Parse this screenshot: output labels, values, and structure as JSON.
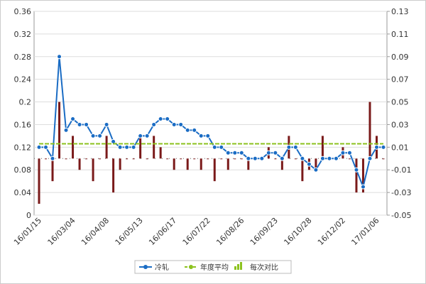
{
  "chart_data": {
    "type": "line",
    "categories": [
      "16/01/15",
      null,
      null,
      null,
      null,
      "16/03/04",
      null,
      null,
      null,
      null,
      "16/04/08",
      null,
      null,
      null,
      null,
      "16/05/13",
      null,
      null,
      null,
      null,
      "16/06/17",
      null,
      null,
      null,
      null,
      "16/07/22",
      null,
      null,
      null,
      null,
      "16/08/26",
      null,
      null,
      null,
      null,
      "16/09/23",
      null,
      null,
      null,
      null,
      "16/10/28",
      null,
      null,
      null,
      null,
      "16/12/02",
      null,
      null,
      null,
      null,
      "17/01/06",
      null
    ],
    "series": [
      {
        "name": "冷轧",
        "color": "#1a6cc4",
        "values": [
          0.12,
          0.12,
          0.1,
          0.28,
          0.15,
          0.17,
          0.16,
          0.16,
          0.14,
          0.14,
          0.16,
          0.13,
          0.12,
          0.12,
          0.12,
          0.14,
          0.14,
          0.16,
          0.17,
          0.17,
          0.16,
          0.16,
          0.15,
          0.15,
          0.14,
          0.14,
          0.12,
          0.12,
          0.11,
          0.11,
          0.11,
          0.1,
          0.1,
          0.1,
          0.11,
          0.11,
          0.1,
          0.12,
          0.12,
          0.1,
          0.09,
          0.08,
          0.1,
          0.1,
          0.1,
          0.11,
          0.11,
          0.08,
          0.05,
          0.1,
          0.12,
          0.12
        ]
      },
      {
        "name": "年度平均",
        "color": "#8cc21e",
        "values": [
          0.126,
          0.126,
          0.126,
          0.126,
          0.126,
          0.126,
          0.126,
          0.126,
          0.126,
          0.126,
          0.126,
          0.126,
          0.126,
          0.126,
          0.126,
          0.126,
          0.126,
          0.126,
          0.126,
          0.126,
          0.126,
          0.126,
          0.126,
          0.126,
          0.126,
          0.126,
          0.126,
          0.126,
          0.126,
          0.126,
          0.126,
          0.126,
          0.126,
          0.126,
          0.126,
          0.126,
          0.126,
          0.126,
          0.126,
          0.126,
          0.126,
          0.126,
          0.126,
          0.126,
          0.126,
          0.126,
          0.126,
          0.126,
          0.126,
          0.126,
          0.126,
          0.126
        ]
      },
      {
        "name": "每次对比",
        "color": "#7a1a1a",
        "axis": "y2",
        "type": "bar",
        "values": [
          -0.04,
          0,
          -0.02,
          0.05,
          0,
          0.02,
          -0.01,
          0,
          -0.02,
          0,
          0.02,
          -0.03,
          -0.01,
          0,
          0,
          0.02,
          0,
          0.02,
          0.01,
          0,
          -0.01,
          0,
          -0.01,
          0,
          -0.01,
          0,
          -0.02,
          0,
          -0.01,
          0,
          0,
          -0.01,
          0,
          0,
          0.01,
          0,
          -0.01,
          0.02,
          0,
          -0.02,
          -0.01,
          -0.01,
          0.02,
          0,
          0,
          0.01,
          0,
          -0.03,
          -0.03,
          0.05,
          0.02,
          0
        ]
      }
    ],
    "ylim": [
      0,
      0.36
    ],
    "yticks": [
      0,
      0.04,
      0.08,
      0.12,
      0.16,
      0.2,
      0.24,
      0.28,
      0.32,
      0.36
    ],
    "y2lim": [
      -0.05,
      0.13
    ],
    "y2ticks": [
      -0.05,
      -0.03,
      -0.01,
      0.01,
      0.03,
      0.05,
      0.07,
      0.09,
      0.11,
      0.13
    ],
    "grid": true,
    "legend": "bottom"
  }
}
